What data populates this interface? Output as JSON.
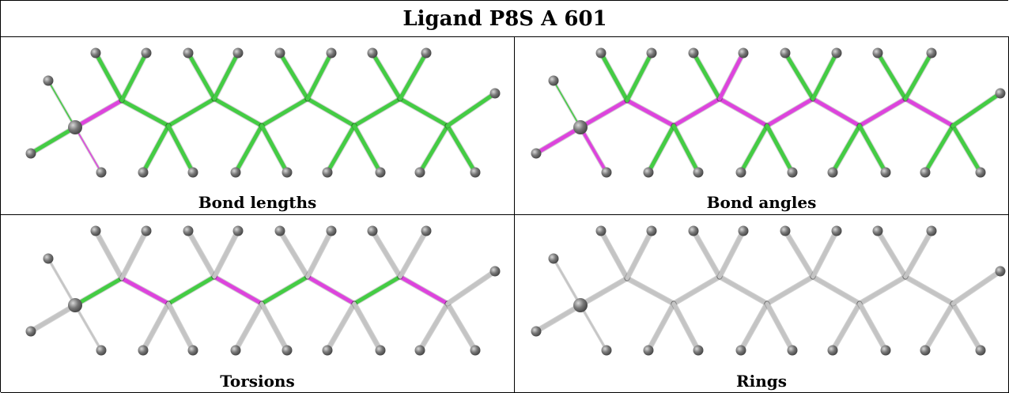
{
  "title": "Ligand P8S A 601",
  "panels": [
    {
      "caption": "Bond lengths",
      "style": "lengths"
    },
    {
      "caption": "Bond angles",
      "style": "angles"
    },
    {
      "caption": "Torsions",
      "style": "torsions"
    },
    {
      "caption": "Rings",
      "style": "rings"
    }
  ],
  "colors": {
    "ok": "#44cc44",
    "outlier": "#dd44dd",
    "neutral": "#c4c4c4",
    "atom": "#777777"
  }
}
